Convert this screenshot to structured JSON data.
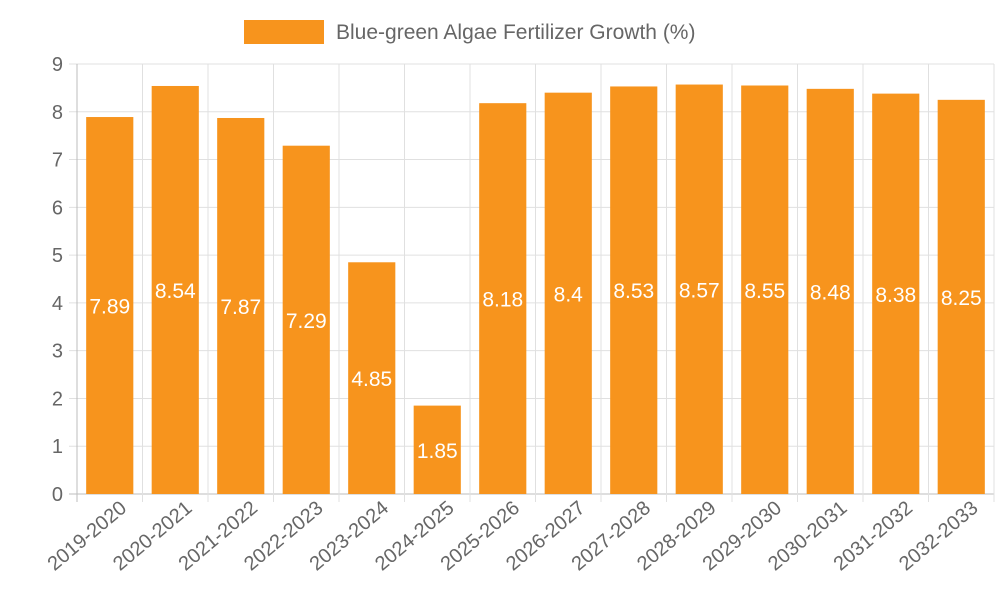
{
  "chart_data": {
    "type": "bar",
    "title": "",
    "xlabel": "",
    "ylabel": "",
    "legend": {
      "label": "Blue-green Algae Fertilizer Growth (%)",
      "placement": "top-center"
    },
    "categories": [
      "2019-2020",
      "2020-2021",
      "2021-2022",
      "2022-2023",
      "2023-2024",
      "2024-2025",
      "2025-2026",
      "2026-2027",
      "2027-2028",
      "2028-2029",
      "2029-2030",
      "2030-2031",
      "2031-2032",
      "2032-2033"
    ],
    "values": [
      7.89,
      8.54,
      7.87,
      7.29,
      4.85,
      1.85,
      8.18,
      8.4,
      8.53,
      8.57,
      8.55,
      8.48,
      8.38,
      8.25
    ],
    "data_labels": [
      "7.89",
      "8.54",
      "7.87",
      "7.29",
      "4.85",
      "1.85",
      "8.18",
      "8.4",
      "8.53",
      "8.57",
      "8.55",
      "8.48",
      "8.38",
      "8.25"
    ],
    "ylim": [
      0,
      9
    ],
    "yticks": [
      0,
      1,
      2,
      3,
      4,
      5,
      6,
      7,
      8,
      9
    ],
    "grid": true,
    "colors": {
      "bar": "#f7941d",
      "grid": "#e0e0e0",
      "axis": "#bdbdbd",
      "text": "#666666",
      "label": "#ffffff"
    }
  }
}
